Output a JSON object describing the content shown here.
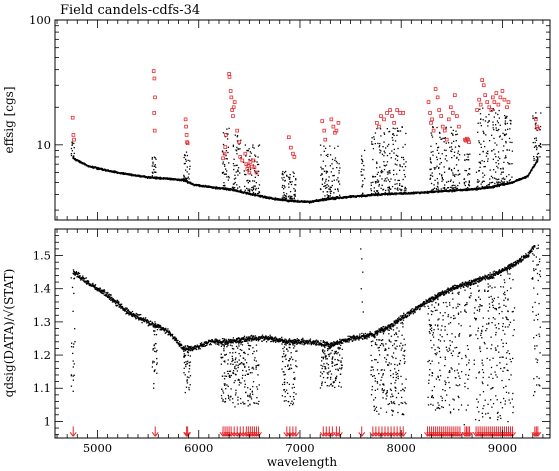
{
  "figure": {
    "title": "Field  candels-cdfs-34",
    "xlabel": "wavelength",
    "top_ylabel": "effsig  [cgs]",
    "bottom_ylabel": "qdsig(DATA)/√(STAT)"
  },
  "chart_data": [
    {
      "type": "scatter",
      "title": "Field  candels-cdfs-34",
      "xlabel": "",
      "ylabel": "effsig  [cgs]",
      "yscale": "log",
      "xlim": [
        4580,
        9470
      ],
      "ylim": [
        2.5,
        100
      ],
      "yticks": [
        {
          "value": 10,
          "label": "10"
        },
        {
          "value": 100,
          "label": "100"
        }
      ],
      "xticks": [
        5000,
        6000,
        7000,
        8000,
        9000
      ],
      "grid": false,
      "legend": "none",
      "colors": {
        "points": "#000000",
        "flagged": "#e8282e"
      },
      "baseline": [
        [
          4760,
          7.8
        ],
        [
          4900,
          6.8
        ],
        [
          5100,
          6.2
        ],
        [
          5300,
          5.8
        ],
        [
          5500,
          5.5
        ],
        [
          5700,
          5.35
        ],
        [
          5850,
          5.2
        ],
        [
          5950,
          4.8
        ],
        [
          6100,
          4.6
        ],
        [
          6300,
          4.4
        ],
        [
          6500,
          4.05
        ],
        [
          6700,
          3.75
        ],
        [
          6900,
          3.55
        ],
        [
          7100,
          3.5
        ],
        [
          7300,
          3.7
        ],
        [
          7500,
          3.85
        ],
        [
          7700,
          3.95
        ],
        [
          7900,
          4.05
        ],
        [
          8100,
          4.1
        ],
        [
          8300,
          4.2
        ],
        [
          8500,
          4.3
        ],
        [
          8700,
          4.4
        ],
        [
          8900,
          4.6
        ],
        [
          9100,
          5.0
        ],
        [
          9250,
          5.6
        ],
        [
          9350,
          7.5
        ]
      ],
      "scatter_regions": [
        {
          "x": [
            4740,
            4770
          ],
          "ymax": 11
        },
        {
          "x": [
            5540,
            5580
          ],
          "ymax": 8
        },
        {
          "x": [
            5850,
            5920
          ],
          "ymax": 9
        },
        {
          "x": [
            6220,
            6300
          ],
          "ymax": 14
        },
        {
          "x": [
            6330,
            6420
          ],
          "ymax": 12
        },
        {
          "x": [
            6440,
            6600
          ],
          "ymax": 10
        },
        {
          "x": [
            6820,
            6960
          ],
          "ymax": 6.2
        },
        {
          "x": [
            7200,
            7400
          ],
          "ymax": 10
        },
        {
          "x": [
            7600,
            7640
          ],
          "ymax": 10
        },
        {
          "x": [
            7700,
            8050
          ],
          "ymax": 14
        },
        {
          "x": [
            8280,
            8580
          ],
          "ymax": 14
        },
        {
          "x": [
            8620,
            8680
          ],
          "ymax": 9
        },
        {
          "x": [
            8740,
            9100
          ],
          "ymax": 20
        },
        {
          "x": [
            9300,
            9380
          ],
          "ymax": 20
        }
      ],
      "flagged_points": [
        [
          4755,
          16.5
        ],
        [
          4762,
          12
        ],
        [
          4768,
          11
        ],
        [
          5555,
          39
        ],
        [
          5562,
          34
        ],
        [
          5568,
          24
        ],
        [
          5560,
          18
        ],
        [
          5565,
          13
        ],
        [
          5870,
          16
        ],
        [
          5875,
          14
        ],
        [
          5880,
          12
        ],
        [
          5885,
          10.5
        ],
        [
          5890,
          10.3
        ],
        [
          6240,
          7.8
        ],
        [
          6255,
          8.5
        ],
        [
          6262,
          9.6
        ],
        [
          6268,
          12
        ],
        [
          6300,
          37
        ],
        [
          6304,
          35
        ],
        [
          6315,
          27
        ],
        [
          6322,
          24
        ],
        [
          6330,
          19
        ],
        [
          6338,
          17
        ],
        [
          6345,
          20
        ],
        [
          6355,
          22
        ],
        [
          6380,
          13
        ],
        [
          6400,
          10.5
        ],
        [
          6410,
          8
        ],
        [
          6430,
          7.5
        ],
        [
          6460,
          8.5
        ],
        [
          6470,
          7
        ],
        [
          6480,
          6.4
        ],
        [
          6490,
          6.8
        ],
        [
          6500,
          6
        ],
        [
          6510,
          7.3
        ],
        [
          6525,
          6.7
        ],
        [
          6540,
          7.5
        ],
        [
          6550,
          6.6
        ],
        [
          6570,
          6
        ],
        [
          6890,
          11.5
        ],
        [
          6910,
          9.5
        ],
        [
          6930,
          8.5
        ],
        [
          6945,
          8
        ],
        [
          7220,
          15.5
        ],
        [
          7240,
          13
        ],
        [
          7250,
          11
        ],
        [
          7310,
          16
        ],
        [
          7330,
          14
        ],
        [
          7345,
          12.5
        ],
        [
          7360,
          13
        ],
        [
          7380,
          15
        ],
        [
          7760,
          15
        ],
        [
          7780,
          14
        ],
        [
          7800,
          17
        ],
        [
          7830,
          16
        ],
        [
          7860,
          18
        ],
        [
          7890,
          19
        ],
        [
          7910,
          17
        ],
        [
          7930,
          15
        ],
        [
          7960,
          19
        ],
        [
          7990,
          18
        ],
        [
          8020,
          18
        ],
        [
          8270,
          22
        ],
        [
          8285,
          18
        ],
        [
          8295,
          15
        ],
        [
          8305,
          16
        ],
        [
          8320,
          13
        ],
        [
          8340,
          28
        ],
        [
          8360,
          24
        ],
        [
          8375,
          19
        ],
        [
          8395,
          17
        ],
        [
          8410,
          14
        ],
        [
          8430,
          13
        ],
        [
          8450,
          11
        ],
        [
          8470,
          16
        ],
        [
          8490,
          20
        ],
        [
          8510,
          18
        ],
        [
          8530,
          25
        ],
        [
          8550,
          17
        ],
        [
          8570,
          14
        ],
        [
          8630,
          11
        ],
        [
          8640,
          10.8
        ],
        [
          8650,
          11.2
        ],
        [
          8660,
          11
        ],
        [
          8670,
          10.5
        ],
        [
          8750,
          19
        ],
        [
          8770,
          23
        ],
        [
          8785,
          21
        ],
        [
          8800,
          33
        ],
        [
          8815,
          30
        ],
        [
          8830,
          25
        ],
        [
          8850,
          22
        ],
        [
          8870,
          20
        ],
        [
          8890,
          19
        ],
        [
          8905,
          24
        ],
        [
          8920,
          22
        ],
        [
          8940,
          26
        ],
        [
          8960,
          21
        ],
        [
          8980,
          24
        ],
        [
          9000,
          27
        ],
        [
          9020,
          23
        ],
        [
          9045,
          20
        ],
        [
          9060,
          22
        ],
        [
          9330,
          16
        ],
        [
          9340,
          14
        ],
        [
          9350,
          13.5
        ]
      ]
    },
    {
      "type": "scatter",
      "xlabel": "wavelength",
      "ylabel": "qdsig(DATA)/√(STAT)",
      "xlim": [
        4580,
        9470
      ],
      "ylim": [
        0.95,
        1.58
      ],
      "yticks": [
        {
          "value": 1.0,
          "label": "1"
        },
        {
          "value": 1.1,
          "label": "1.1"
        },
        {
          "value": 1.2,
          "label": "1.2"
        },
        {
          "value": 1.3,
          "label": "1.3"
        },
        {
          "value": 1.4,
          "label": "1.4"
        },
        {
          "value": 1.5,
          "label": "1.5"
        }
      ],
      "xticks": [
        {
          "value": 5000,
          "label": "5000"
        },
        {
          "value": 6000,
          "label": "6000"
        },
        {
          "value": 7000,
          "label": "7000"
        },
        {
          "value": 8000,
          "label": "8000"
        },
        {
          "value": 9000,
          "label": "9000"
        }
      ],
      "grid": false,
      "legend": "none",
      "colors": {
        "points": "#000000",
        "arrows": "#e8282e"
      },
      "trend": [
        [
          4760,
          1.45
        ],
        [
          4900,
          1.42
        ],
        [
          5100,
          1.38
        ],
        [
          5300,
          1.33
        ],
        [
          5500,
          1.3
        ],
        [
          5700,
          1.27
        ],
        [
          5850,
          1.22
        ],
        [
          5950,
          1.22
        ],
        [
          6100,
          1.24
        ],
        [
          6300,
          1.24
        ],
        [
          6500,
          1.25
        ],
        [
          6700,
          1.25
        ],
        [
          6900,
          1.24
        ],
        [
          7100,
          1.24
        ],
        [
          7300,
          1.23
        ],
        [
          7500,
          1.25
        ],
        [
          7700,
          1.26
        ],
        [
          7900,
          1.29
        ],
        [
          8100,
          1.33
        ],
        [
          8300,
          1.37
        ],
        [
          8500,
          1.4
        ],
        [
          8700,
          1.42
        ],
        [
          8900,
          1.44
        ],
        [
          9100,
          1.47
        ],
        [
          9250,
          1.5
        ],
        [
          9320,
          1.53
        ]
      ],
      "scatter_regions": [
        {
          "x": [
            4740,
            4780
          ],
          "ymin": 1.05
        },
        {
          "x": [
            5540,
            5590
          ],
          "ymin": 1.1
        },
        {
          "x": [
            5850,
            5920
          ],
          "ymin": 1.08
        },
        {
          "x": [
            6220,
            6600
          ],
          "ymin": 1.05
        },
        {
          "x": [
            6820,
            6970
          ],
          "ymin": 1.05
        },
        {
          "x": [
            7200,
            7420
          ],
          "ymin": 1.1
        },
        {
          "x": [
            7700,
            8060
          ],
          "ymin": 1.02
        },
        {
          "x": [
            8260,
            8600
          ],
          "ymin": 1.02
        },
        {
          "x": [
            8620,
            8690
          ],
          "ymin": 0.97
        },
        {
          "x": [
            8720,
            9120
          ],
          "ymin": 1.0
        },
        {
          "x": [
            9290,
            9380
          ],
          "ymin": 1.05
        }
      ],
      "spikes": [
        [
          7600,
          1.52
        ],
        [
          7610,
          1.49
        ],
        [
          7620,
          1.45
        ],
        [
          7605,
          1.4
        ],
        [
          7615,
          1.36
        ],
        [
          7625,
          1.33
        ]
      ],
      "flag_arrows_x": [
        4760,
        5570,
        5880,
        5890,
        6240,
        6260,
        6280,
        6300,
        6320,
        6350,
        6380,
        6410,
        6440,
        6470,
        6490,
        6510,
        6530,
        6550,
        6570,
        6590,
        6870,
        6900,
        6930,
        6960,
        7230,
        7260,
        7290,
        7320,
        7360,
        7390,
        7610,
        7720,
        7750,
        7780,
        7810,
        7840,
        7870,
        7900,
        7930,
        7960,
        7990,
        8020,
        8260,
        8280,
        8300,
        8320,
        8340,
        8360,
        8380,
        8400,
        8420,
        8440,
        8460,
        8480,
        8500,
        8520,
        8540,
        8560,
        8580,
        8630,
        8645,
        8660,
        8675,
        8740,
        8760,
        8780,
        8800,
        8820,
        8840,
        8860,
        8880,
        8900,
        8920,
        8940,
        8960,
        8980,
        9000,
        9020,
        9040,
        9060,
        9080,
        9100,
        9320,
        9335,
        9350
      ]
    }
  ]
}
